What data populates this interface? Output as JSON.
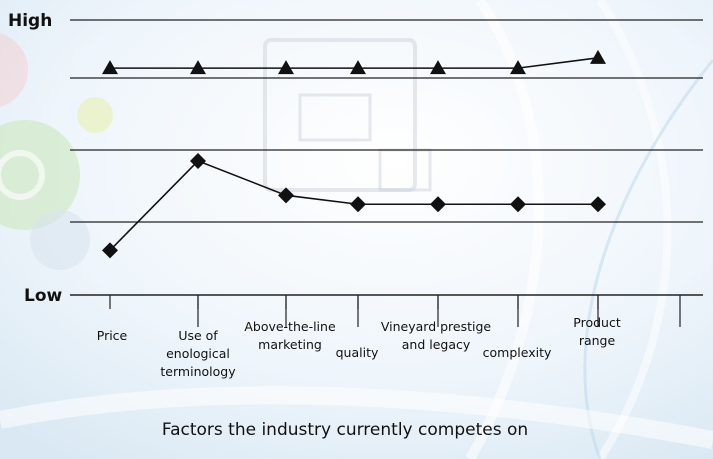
{
  "chart_data": {
    "type": "line",
    "title": "",
    "xlabel": "Factors the industry currently competes on",
    "y_axis_labels": {
      "high": "High",
      "low": "Low"
    },
    "ylim": [
      0,
      4
    ],
    "grid": "horizontal",
    "categories": [
      [
        "Price"
      ],
      [
        "Use of",
        "enological",
        "terminology"
      ],
      [
        "Above-the-line",
        "marketing"
      ],
      [
        "quality"
      ],
      [
        "Vineyard prestige",
        "and legacy"
      ],
      [
        "complexity"
      ],
      [
        "Product",
        "range"
      ]
    ],
    "series": [
      {
        "marker": "triangle",
        "values": [
          3.3,
          3.3,
          3.3,
          3.3,
          3.3,
          3.3,
          3.45
        ]
      },
      {
        "marker": "diamond",
        "values": [
          0.65,
          1.95,
          1.45,
          1.32,
          1.32,
          1.32,
          1.32
        ]
      }
    ],
    "colors": {
      "line": "#111111",
      "grid": "#222222",
      "text": "#111111"
    }
  }
}
